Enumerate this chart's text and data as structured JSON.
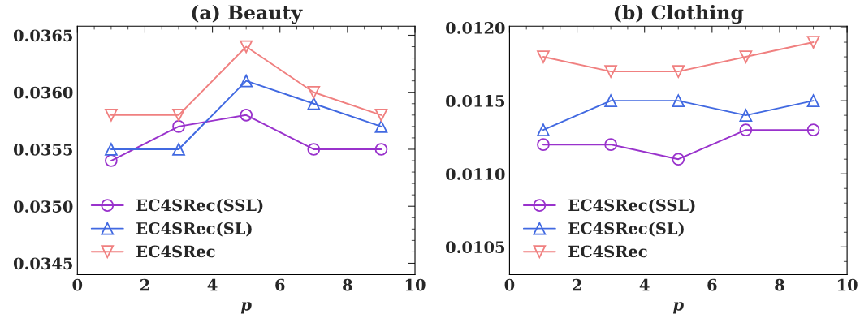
{
  "chart_data": [
    {
      "type": "line",
      "title": "(a) Beauty",
      "xlabel": "p",
      "x": [
        1,
        3,
        5,
        7,
        9
      ],
      "xlim": [
        0,
        10
      ],
      "xticks": [
        0,
        2,
        4,
        6,
        8,
        10
      ],
      "ylim": [
        0.0344,
        0.03658
      ],
      "yticks": [
        {
          "value": 0.0345,
          "label": "0.0345"
        },
        {
          "value": 0.035,
          "label": "0.0350"
        },
        {
          "value": 0.0355,
          "label": "0.0355"
        },
        {
          "value": 0.036,
          "label": "0.0360"
        },
        {
          "value": 0.0365,
          "label": "0.0365"
        }
      ],
      "legend": "bottom left",
      "grid": false,
      "series": [
        {
          "name": "EC4SRec(SSL)",
          "color": "#9932cc",
          "marker": "circle",
          "values": [
            0.0354,
            0.0357,
            0.0358,
            0.0355,
            0.0355
          ]
        },
        {
          "name": "EC4SRec(SL)",
          "color": "#4169e1",
          "marker": "triangle",
          "values": [
            0.0355,
            0.0355,
            0.0361,
            0.0359,
            0.0357
          ]
        },
        {
          "name": "EC4SRec",
          "color": "#f08080",
          "marker": "triangle_down",
          "values": [
            0.0358,
            0.0358,
            0.0364,
            0.036,
            0.0358
          ]
        }
      ]
    },
    {
      "type": "line",
      "title": "(b) Clothing",
      "xlabel": "p",
      "x": [
        1,
        3,
        5,
        7,
        9
      ],
      "xlim": [
        0,
        10
      ],
      "xticks": [
        0,
        2,
        4,
        6,
        8,
        10
      ],
      "ylim": [
        0.01031,
        0.01201
      ],
      "yticks": [
        {
          "value": 0.0105,
          "label": "0.0105"
        },
        {
          "value": 0.011,
          "label": "0.0110"
        },
        {
          "value": 0.0115,
          "label": "0.0115"
        },
        {
          "value": 0.012,
          "label": "0.0120"
        }
      ],
      "legend": "bottom left",
      "grid": false,
      "series": [
        {
          "name": "EC4SRec(SSL)",
          "color": "#9932cc",
          "marker": "circle",
          "values": [
            0.0112,
            0.0112,
            0.0111,
            0.0113,
            0.0113
          ]
        },
        {
          "name": "EC4SRec(SL)",
          "color": "#4169e1",
          "marker": "triangle",
          "values": [
            0.0113,
            0.0115,
            0.0115,
            0.0114,
            0.0115
          ]
        },
        {
          "name": "EC4SRec",
          "color": "#f08080",
          "marker": "triangle_down",
          "values": [
            0.0118,
            0.0117,
            0.0117,
            0.0118,
            0.0119
          ]
        }
      ]
    }
  ]
}
